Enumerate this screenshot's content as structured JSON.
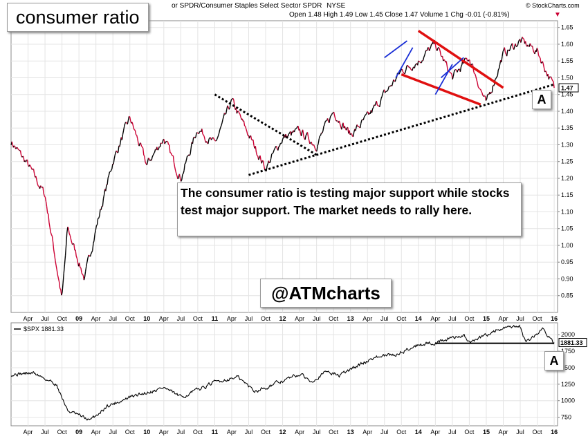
{
  "header": {
    "symbol_desc": "or SPDR/Consumer Staples Select Sector SPDR",
    "exchange": "NYSE",
    "ohlc_line": "Open 1.48  High 1.49  Low 1.45  Close 1.47  Volume 1  Chg -0.01 (-0.81%)",
    "source": "© StockCharts.com"
  },
  "annotations": {
    "title": "consumer ratio",
    "note": "The consumer ratio is testing major support while stocks test major support.  The market needs to rally here.",
    "handle": "@ATMcharts",
    "marker_top": "A",
    "marker_bottom": "A"
  },
  "colors": {
    "up": "#000000",
    "down": "#cc0033",
    "channel": "#e01010",
    "flag": "#1a2fd6",
    "trendline": "#000000"
  },
  "chart_data": [
    {
      "type": "line",
      "title": "consumer ratio",
      "ylim": [
        0.8,
        1.67
      ],
      "y_ticks": [
        0.85,
        0.9,
        0.95,
        1.0,
        1.05,
        1.1,
        1.15,
        1.2,
        1.25,
        1.3,
        1.35,
        1.4,
        1.45,
        1.5,
        1.55,
        1.6,
        1.65
      ],
      "y_tick_labels": [
        "0.85",
        "0.90",
        "0.95",
        "1.00",
        "1.05",
        "1.10",
        "1.15",
        "1.20",
        "1.25",
        "1.30",
        "1.35",
        "1.40",
        "1.45",
        "1.50",
        "1.55",
        "1.60",
        "1.65"
      ],
      "x_tick_labels": [
        "Apr",
        "Jul",
        "Oct",
        "09",
        "Apr",
        "Jul",
        "Oct",
        "10",
        "Apr",
        "Jul",
        "Oct",
        "11",
        "Apr",
        "Jul",
        "Oct",
        "12",
        "Apr",
        "Jul",
        "Oct",
        "13",
        "Apr",
        "Jul",
        "Oct",
        "14",
        "Apr",
        "Jul",
        "Oct",
        "15",
        "Apr",
        "Jul",
        "Oct",
        "16"
      ],
      "last_value_label": "1.47",
      "grid": true,
      "series": [
        {
          "x": [
            "2008-01",
            "2008-04",
            "2008-07",
            "2008-10",
            "2008-11",
            "2009-01",
            "2009-02",
            "2009-04",
            "2009-07",
            "2009-10",
            "2010-01",
            "2010-04",
            "2010-07",
            "2010-10",
            "2011-01",
            "2011-04",
            "2011-07",
            "2011-10",
            "2012-01",
            "2012-04",
            "2012-07",
            "2012-10",
            "2013-01",
            "2013-04",
            "2013-07",
            "2013-10",
            "2014-01",
            "2014-04",
            "2014-07",
            "2014-10",
            "2015-01",
            "2015-04",
            "2015-07",
            "2015-10",
            "2016-01"
          ],
          "y": [
            1.31,
            1.24,
            1.15,
            0.84,
            1.05,
            0.95,
            0.9,
            1.05,
            1.25,
            1.38,
            1.24,
            1.32,
            1.2,
            1.35,
            1.3,
            1.43,
            1.33,
            1.23,
            1.32,
            1.34,
            1.3,
            1.4,
            1.33,
            1.38,
            1.45,
            1.52,
            1.55,
            1.6,
            1.5,
            1.56,
            1.42,
            1.57,
            1.61,
            1.58,
            1.47
          ]
        }
      ],
      "trendlines": [
        {
          "name": "support",
          "x": [
            "2011-07",
            "2016-01"
          ],
          "y": [
            1.21,
            1.48
          ]
        },
        {
          "name": "resistance",
          "x": [
            "2011-01",
            "2012-07"
          ],
          "y": [
            1.45,
            1.27
          ]
        },
        {
          "name": "channel-upper",
          "x": [
            "2014-01",
            "2015-04"
          ],
          "y": [
            1.64,
            1.47
          ]
        },
        {
          "name": "channel-lower",
          "x": [
            "2013-10",
            "2014-12"
          ],
          "y": [
            1.51,
            1.42
          ]
        }
      ],
      "flag_lines": [
        {
          "x": [
            "2013-07",
            "2013-11"
          ],
          "y": [
            1.56,
            1.61
          ]
        },
        {
          "x": [
            "2013-09",
            "2013-12"
          ],
          "y": [
            1.5,
            1.59
          ]
        },
        {
          "x": [
            "2014-04",
            "2014-07"
          ],
          "y": [
            1.45,
            1.54
          ]
        },
        {
          "x": [
            "2014-05",
            "2014-09"
          ],
          "y": [
            1.5,
            1.56
          ]
        }
      ]
    },
    {
      "type": "line",
      "legend": "$SPX 1881.33",
      "ylim": [
        620,
        2180
      ],
      "y_ticks": [
        750,
        1000,
        1250,
        1500,
        1750,
        2000
      ],
      "y_tick_labels": [
        "750",
        "1000",
        "1250",
        "1500",
        "1750",
        "2000"
      ],
      "x_tick_labels": [
        "Apr",
        "Jul",
        "Oct",
        "09",
        "Apr",
        "Jul",
        "Oct",
        "10",
        "Apr",
        "Jul",
        "Oct",
        "11",
        "Apr",
        "Jul",
        "Oct",
        "12",
        "Apr",
        "Jul",
        "Oct",
        "13",
        "Apr",
        "Jul",
        "Oct",
        "14",
        "Apr",
        "Jul",
        "Oct",
        "15",
        "Apr",
        "Jul",
        "Oct",
        "16"
      ],
      "last_value_label": "1881.33",
      "series": [
        {
          "name": "$SPX",
          "x": [
            "2008-01",
            "2008-05",
            "2008-09",
            "2008-11",
            "2009-03",
            "2009-06",
            "2009-10",
            "2010-04",
            "2010-07",
            "2011-01",
            "2011-05",
            "2011-08",
            "2011-10",
            "2012-04",
            "2012-06",
            "2012-09",
            "2012-11",
            "2013-05",
            "2013-09",
            "2014-01",
            "2014-04",
            "2014-09",
            "2014-10",
            "2015-03",
            "2015-07",
            "2015-08",
            "2015-11",
            "2016-01"
          ],
          "y": [
            1400,
            1420,
            1250,
            850,
            700,
            920,
            1050,
            1200,
            1050,
            1280,
            1360,
            1150,
            1200,
            1400,
            1300,
            1450,
            1380,
            1650,
            1700,
            1850,
            1880,
            2000,
            1870,
            2080,
            2120,
            1870,
            2090,
            1881
          ]
        }
      ],
      "support_line": {
        "x": [
          "2014-04",
          "2016-01"
        ],
        "y": [
          1870,
          1870
        ]
      }
    }
  ]
}
